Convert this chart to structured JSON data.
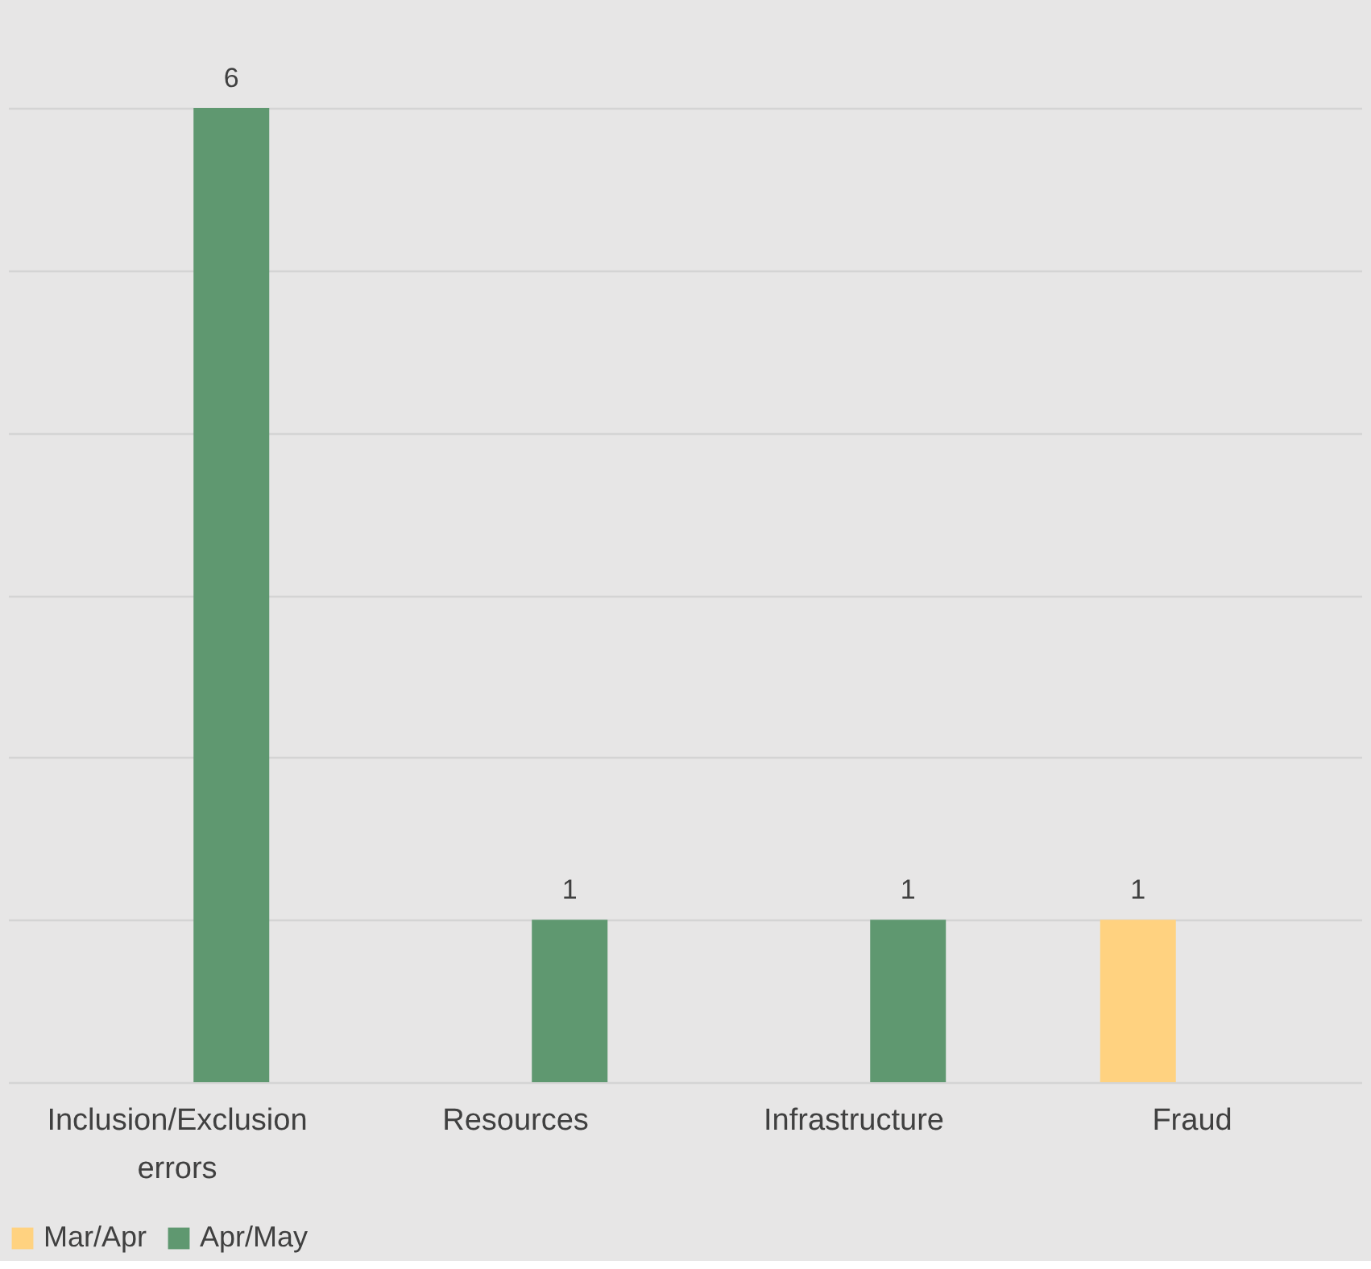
{
  "chart_data": {
    "type": "bar",
    "categories": [
      "Inclusion/Exclusion errors",
      "Resources",
      "Infrastructure",
      "Fraud"
    ],
    "series": [
      {
        "name": "Mar/Apr",
        "color": "#ffd280",
        "values": [
          null,
          null,
          null,
          1
        ]
      },
      {
        "name": "Apr/May",
        "color": "#5f9870",
        "values": [
          6,
          1,
          1,
          null
        ]
      }
    ],
    "ylim": [
      0,
      6
    ],
    "yticks": [
      {
        "value": 0,
        "label": null
      },
      {
        "value": 1,
        "label": null
      },
      {
        "value": 2,
        "label": null
      },
      {
        "value": 3,
        "label": null
      },
      {
        "value": 4,
        "label": null
      },
      {
        "value": 5,
        "label": null
      },
      {
        "value": 6,
        "label": null
      }
    ],
    "grid": "y",
    "tick_labels": "x",
    "data_labels": true,
    "legend": "bottom"
  }
}
